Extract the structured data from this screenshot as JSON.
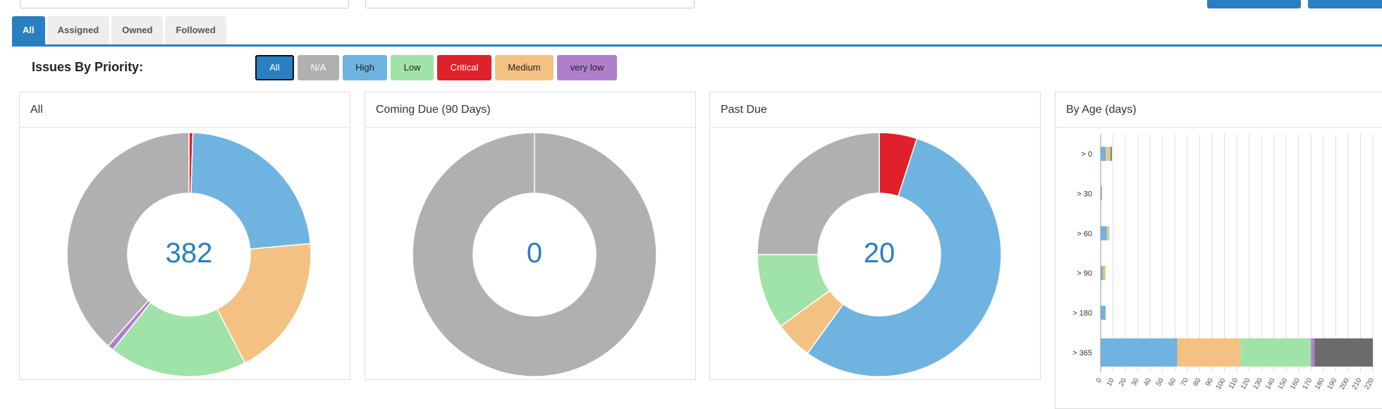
{
  "tabs": [
    {
      "label": "All",
      "active": true
    },
    {
      "label": "Assigned",
      "active": false
    },
    {
      "label": "Owned",
      "active": false
    },
    {
      "label": "Followed",
      "active": false
    }
  ],
  "priority": {
    "title": "Issues By Priority:",
    "buttons": [
      {
        "label": "All",
        "color": "#2a7fc0",
        "text_color": "#ffffff"
      },
      {
        "label": "N/A",
        "color": "#b0b0b0",
        "text_color": "#ffffff"
      },
      {
        "label": "High",
        "color": "#6fb3e0",
        "text_color": "#222222"
      },
      {
        "label": "Low",
        "color": "#a0e3a8",
        "text_color": "#222222"
      },
      {
        "label": "Critical",
        "color": "#e0202a",
        "text_color": "#ffffff"
      },
      {
        "label": "Medium",
        "color": "#f3c283",
        "text_color": "#222222"
      },
      {
        "label": "very low",
        "color": "#b07fcc",
        "text_color": "#222222"
      }
    ]
  },
  "colors": {
    "na": "#b0b0b0",
    "high": "#6fb3e0",
    "low": "#a0e3a8",
    "critical": "#e0202a",
    "medium": "#f3c283",
    "very_low": "#b07fcc",
    "dark": "#6b6b6b",
    "accent": "#2a7fc0"
  },
  "panels": {
    "all": {
      "title": "All",
      "total": "382"
    },
    "coming_due": {
      "title": "Coming Due (90 Days)",
      "total": "0"
    },
    "past_due": {
      "title": "Past Due",
      "total": "20"
    },
    "by_age": {
      "title": "By Age (days)"
    }
  },
  "chart_data": [
    {
      "type": "pie",
      "title": "All",
      "center_label": "382",
      "slices": [
        {
          "label": "Critical",
          "value": 2,
          "color": "#e0202a"
        },
        {
          "label": "High",
          "value": 88,
          "color": "#6fb3e0"
        },
        {
          "label": "Medium",
          "value": 72,
          "color": "#f3c283"
        },
        {
          "label": "Low",
          "value": 70,
          "color": "#a0e3a8"
        },
        {
          "label": "very low",
          "value": 3,
          "color": "#b07fcc"
        },
        {
          "label": "N/A",
          "value": 147,
          "color": "#b0b0b0"
        }
      ]
    },
    {
      "type": "pie",
      "title": "Coming Due (90 Days)",
      "center_label": "0",
      "slices": [
        {
          "label": "N/A",
          "value": 1,
          "color": "#b0b0b0"
        }
      ]
    },
    {
      "type": "pie",
      "title": "Past Due",
      "center_label": "20",
      "slices": [
        {
          "label": "Critical",
          "value": 1,
          "color": "#e0202a"
        },
        {
          "label": "High",
          "value": 11,
          "color": "#6fb3e0"
        },
        {
          "label": "Medium",
          "value": 1,
          "color": "#f3c283"
        },
        {
          "label": "Low",
          "value": 2,
          "color": "#a0e3a8"
        },
        {
          "label": "N/A",
          "value": 5,
          "color": "#b0b0b0"
        }
      ]
    },
    {
      "type": "bar",
      "orientation": "horizontal",
      "stacked": true,
      "title": "By Age (days)",
      "categories": [
        "> 0",
        "> 30",
        "> 60",
        "> 90",
        "> 180",
        "> 365"
      ],
      "x_ticks": [
        0,
        10,
        20,
        30,
        40,
        50,
        60,
        70,
        80,
        90,
        100,
        110,
        120,
        130,
        140,
        150,
        160,
        170,
        180,
        190,
        200,
        210,
        220
      ],
      "xlim": [
        0,
        220
      ],
      "grid": true,
      "series": [
        {
          "name": "High",
          "color": "#6fb3e0",
          "values": [
            4,
            1,
            5,
            2,
            4,
            62
          ]
        },
        {
          "name": "Medium",
          "color": "#f3c283",
          "values": [
            3,
            0,
            1,
            2,
            0,
            51
          ]
        },
        {
          "name": "Low",
          "color": "#a0e3a8",
          "values": [
            1,
            0,
            1,
            0,
            0,
            57
          ]
        },
        {
          "name": "very low",
          "color": "#b07fcc",
          "values": [
            0,
            0,
            0,
            0,
            0,
            3
          ]
        },
        {
          "name": "N/A",
          "color": "#6b6b6b",
          "values": [
            1,
            0,
            0,
            0,
            0,
            47
          ]
        }
      ]
    }
  ]
}
